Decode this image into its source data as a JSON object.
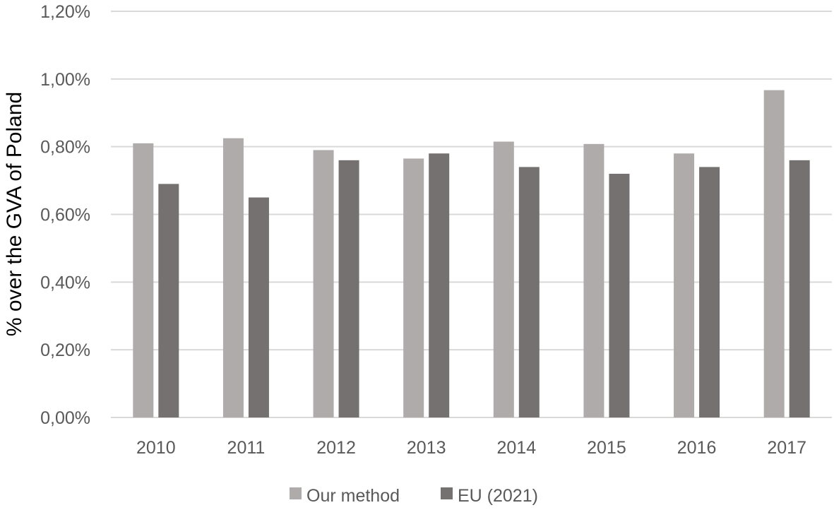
{
  "chart_data": {
    "type": "bar",
    "title": "",
    "xlabel": "",
    "ylabel": "% over the GVA of Poland",
    "categories": [
      "2010",
      "2011",
      "2012",
      "2013",
      "2014",
      "2015",
      "2016",
      "2017"
    ],
    "series": [
      {
        "name": "Our method",
        "color": "#afabab",
        "values": [
          0.81,
          0.825,
          0.79,
          0.765,
          0.815,
          0.808,
          0.78,
          0.967
        ]
      },
      {
        "name": "EU (2021)",
        "color": "#767171",
        "values": [
          0.69,
          0.65,
          0.76,
          0.78,
          0.74,
          0.72,
          0.74,
          0.76
        ]
      }
    ],
    "ylim": [
      0,
      1.2
    ],
    "yticks": [
      0,
      0.2,
      0.4,
      0.6,
      0.8,
      1.0,
      1.2
    ],
    "ytick_labels": [
      "0,00%",
      "0,20%",
      "0,40%",
      "0,60%",
      "0,80%",
      "1,00%",
      "1,20%"
    ],
    "y_unit": "%",
    "grid": true,
    "gridline_color": "#d9d9d9",
    "legend_position": "bottom"
  }
}
